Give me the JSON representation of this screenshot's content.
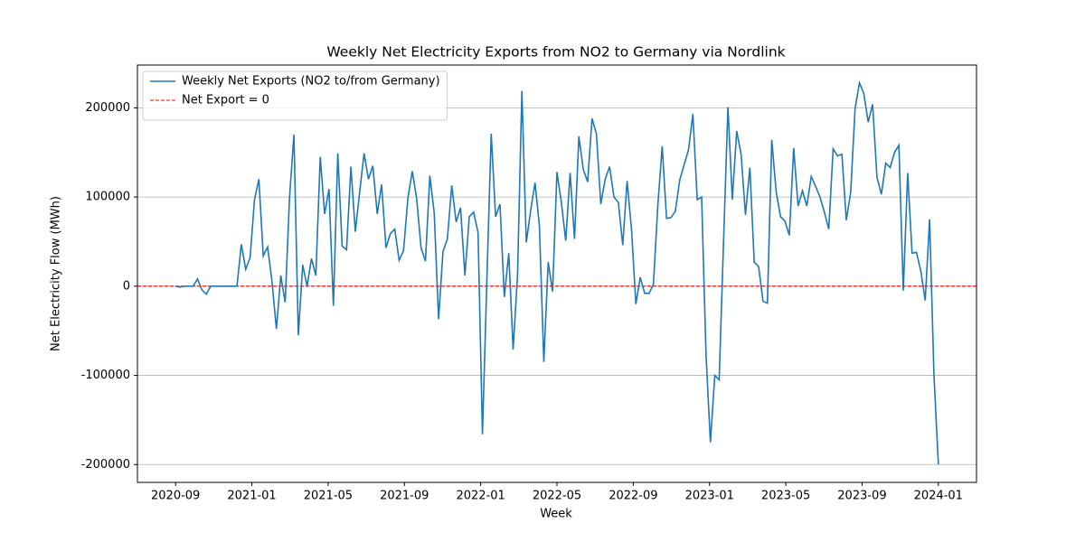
{
  "chart_data": {
    "type": "line",
    "title": "Weekly Net Electricity Exports from NO2 to Germany via Nordlink",
    "x_label": "Week",
    "y_label": "Net Electricity Flow (MWh)",
    "xlim": [
      "2020-07",
      "2024-03"
    ],
    "xticks": [
      "2020-09",
      "2021-01",
      "2021-05",
      "2021-09",
      "2022-01",
      "2022-05",
      "2022-09",
      "2023-01",
      "2023-05",
      "2023-09",
      "2024-01"
    ],
    "ylim": [
      -220000,
      248000
    ],
    "yticks": [
      -200000,
      -100000,
      0,
      100000,
      200000
    ],
    "grid": "y",
    "legend_position": "upper left",
    "series": [
      {
        "name": "Weekly Net Exports (NO2 to/from Germany)",
        "color": "#1f77b4",
        "values": [
          0,
          -1000,
          0,
          0,
          0,
          8000,
          -4000,
          -9000,
          0,
          0,
          0,
          0,
          0,
          0,
          0,
          47000,
          19000,
          32000,
          97000,
          120000,
          34000,
          44000,
          5000,
          -48000,
          12000,
          -18000,
          100000,
          170000,
          -55000,
          24000,
          0,
          31000,
          12000,
          145000,
          81000,
          109000,
          -22000,
          149000,
          45000,
          41000,
          134000,
          61000,
          106000,
          149000,
          120000,
          135000,
          81000,
          114000,
          43000,
          59000,
          64000,
          29000,
          40000,
          99000,
          129000,
          98000,
          43000,
          28000,
          124000,
          82000,
          -37000,
          39000,
          53000,
          113000,
          72000,
          88000,
          12000,
          78000,
          83000,
          60000,
          -166000,
          5000,
          171000,
          78000,
          92000,
          -12000,
          37000,
          -71000,
          12000,
          219000,
          49000,
          85000,
          116000,
          67000,
          -85000,
          27000,
          -6000,
          128000,
          94000,
          51000,
          127000,
          53000,
          168000,
          131000,
          117000,
          188000,
          171000,
          92000,
          120000,
          134000,
          100000,
          94000,
          46000,
          118000,
          64000,
          -20000,
          10000,
          -8000,
          -8000,
          2000,
          90000,
          157000,
          76000,
          77000,
          84000,
          119000,
          136000,
          153000,
          193000,
          97000,
          100000,
          -77000,
          -175000,
          -100000,
          -105000,
          50000,
          201000,
          97000,
          174000,
          148000,
          80000,
          133000,
          27000,
          22000,
          -17000,
          -19000,
          164000,
          106000,
          78000,
          73000,
          57000,
          155000,
          90000,
          107000,
          90000,
          123000,
          112000,
          100000,
          83000,
          64000,
          154000,
          146000,
          148000,
          74000,
          105000,
          199000,
          228000,
          216000,
          184000,
          204000,
          122000,
          103000,
          138000,
          133000,
          150000,
          158000,
          -5000,
          127000,
          37000,
          38000,
          17000,
          -16000,
          75000,
          -100000,
          -200000
        ]
      }
    ],
    "reference_lines": [
      {
        "name": "Net Export = 0",
        "value": 0,
        "color": "red",
        "dashed": true
      }
    ]
  }
}
